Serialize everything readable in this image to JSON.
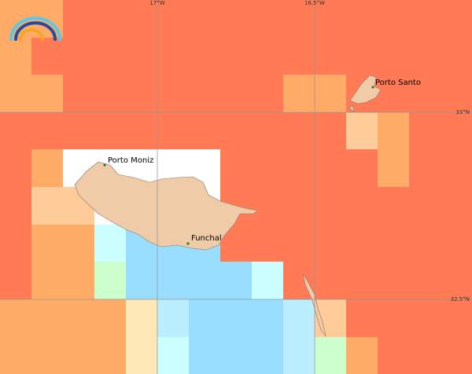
{
  "grid_labels": {
    "lon": [
      "17°W",
      "16.5°W"
    ],
    "lat": [
      "33°N",
      "32.5°N"
    ]
  },
  "places": [
    "Porto Moniz",
    "Funchal",
    "Porto Santo"
  ]
}
